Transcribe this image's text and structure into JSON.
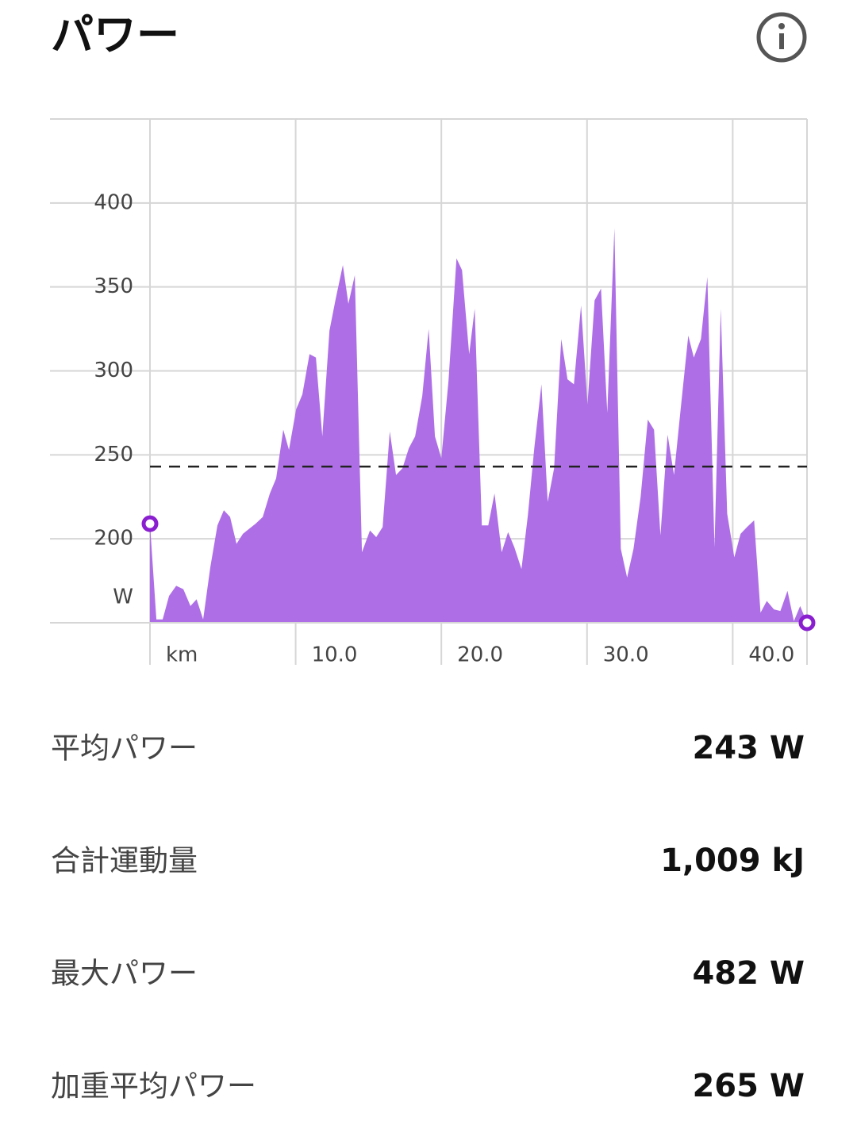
{
  "header": {
    "title": "パワー"
  },
  "chart_data": {
    "type": "area",
    "x_label": "km",
    "y_label": "W",
    "color": "#ae6fe6",
    "marker_color": "#8a1fd0",
    "xlim": [
      0,
      45.1
    ],
    "ylim": [
      150,
      450
    ],
    "xticks": [
      {
        "value": 10,
        "label": "10.0"
      },
      {
        "value": 20,
        "label": "20.0"
      },
      {
        "value": 30,
        "label": "30.0"
      },
      {
        "value": 40,
        "label": "40.0"
      }
    ],
    "yticks": [
      200,
      250,
      300,
      350,
      400
    ],
    "grid": true,
    "average_line": 243,
    "x": [
      0,
      0.44,
      0.87,
      1.31,
      1.8,
      2.29,
      2.78,
      3.2,
      3.65,
      4.14,
      4.63,
      5.07,
      5.5,
      5.94,
      6.38,
      6.81,
      7.25,
      7.74,
      8.23,
      8.66,
      9.15,
      9.54,
      10.03,
      10.46,
      10.95,
      11.39,
      11.83,
      12.32,
      12.75,
      13.24,
      13.62,
      14.06,
      14.55,
      15.1,
      15.53,
      15.97,
      16.46,
      16.89,
      17.33,
      17.77,
      18.2,
      18.69,
      19.13,
      19.56,
      20.0,
      20.49,
      21.04,
      21.42,
      21.91,
      22.29,
      22.78,
      23.22,
      23.65,
      24.14,
      24.58,
      25.01,
      25.5,
      25.94,
      26.38,
      26.87,
      27.3,
      27.74,
      28.23,
      28.66,
      29.1,
      29.59,
      30.03,
      30.52,
      30.96,
      31.39,
      31.88,
      32.32,
      32.75,
      33.19,
      33.68,
      34.17,
      34.6,
      35.04,
      35.53,
      35.97,
      36.4,
      36.95,
      37.33,
      37.82,
      38.26,
      38.75,
      39.18,
      39.62,
      40.11,
      40.54,
      40.98,
      41.47,
      41.91,
      42.34,
      42.83,
      43.27,
      43.76,
      44.2,
      44.63,
      45.1
    ],
    "series": [
      {
        "name": "パワー",
        "values": [
          209,
          152,
          152,
          166,
          172,
          170,
          160,
          164,
          152,
          183,
          208,
          217,
          213,
          197,
          203,
          206,
          209,
          213,
          227,
          236,
          265,
          253,
          277,
          286,
          310,
          308,
          261,
          324,
          343,
          363,
          340,
          357,
          192,
          205,
          201,
          207,
          264,
          238,
          242,
          254,
          261,
          285,
          325,
          261,
          248,
          294,
          367,
          360,
          310,
          337,
          208,
          208,
          227,
          192,
          204,
          195,
          182,
          214,
          254,
          292,
          222,
          242,
          319,
          295,
          292,
          339,
          280,
          342,
          349,
          275,
          385,
          194,
          177,
          194,
          225,
          271,
          265,
          202,
          262,
          238,
          275,
          321,
          308,
          319,
          356,
          195,
          337,
          215,
          189,
          203,
          207,
          211,
          156,
          163,
          158,
          157,
          169,
          151,
          160,
          150
        ]
      }
    ]
  },
  "stats": [
    {
      "label": "平均パワー",
      "value": "243 W"
    },
    {
      "label": "合計運動量",
      "value": "1,009 kJ"
    },
    {
      "label": "最大パワー",
      "value": "482 W"
    },
    {
      "label": "加重平均パワー",
      "value": "265 W"
    }
  ]
}
